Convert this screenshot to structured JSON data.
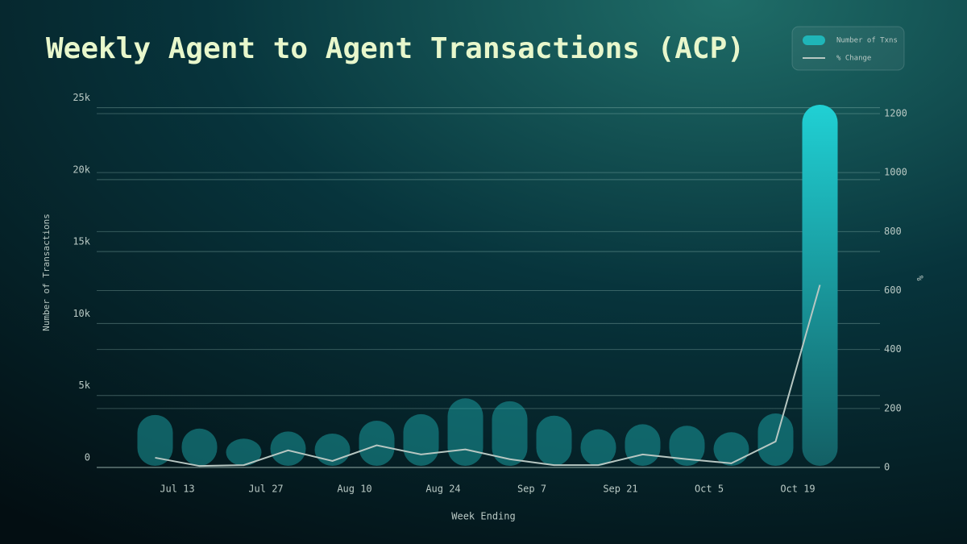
{
  "chart_data": {
    "type": "bar",
    "title": "Weekly Agent to Agent Transactions (ACP)",
    "categories": [
      "Jul 13",
      null,
      "Jul 27",
      null,
      "Aug 10",
      null,
      "Aug 24",
      null,
      "Sep 7",
      null,
      "Sep 21",
      null,
      "Oct 5",
      null,
      "Oct 19",
      null
    ],
    "series": [
      {
        "name": "Number of Txns",
        "color": "#1fb5b8",
        "values": [
          3650,
          2700,
          2000,
          2500,
          2350,
          3250,
          3700,
          4800,
          4600,
          3600,
          2650,
          3000,
          2900,
          2450,
          3750,
          25200
        ]
      },
      {
        "name": "% Change",
        "color": "#b7c7c2",
        "axis": "y2",
        "values": [
          33,
          5,
          8,
          58,
          22,
          75,
          44,
          61,
          28,
          8,
          8,
          44,
          28,
          14,
          88,
          619
        ]
      }
    ],
    "x_label": "Week Ending",
    "y_label": "Number of Transactions",
    "y2_label": "%",
    "ylim": [
      0,
      25200
    ],
    "yticks": [
      0,
      {
        "value": 5000,
        "label": "5k"
      },
      {
        "value": 10000,
        "label": "10k"
      },
      {
        "value": 15000,
        "label": "15k"
      },
      {
        "value": 20000,
        "label": "20k"
      },
      {
        "value": 25000,
        "label": "25k"
      }
    ],
    "y2lim": [
      0,
      1230
    ],
    "y2ticks": [
      0,
      200,
      400,
      600,
      800,
      1000,
      1200
    ],
    "grid": true,
    "legend": "top-right"
  }
}
